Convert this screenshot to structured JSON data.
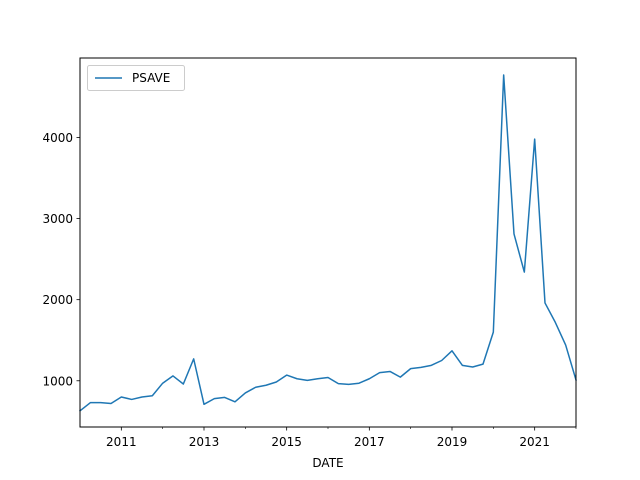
{
  "chart_data": {
    "type": "line",
    "title": "",
    "xlabel": "DATE",
    "ylabel": "",
    "x_ticks": [
      {
        "label": "2011",
        "value": 2011.0
      },
      {
        "label": "2013",
        "value": 2013.0
      },
      {
        "label": "2015",
        "value": 2015.0
      },
      {
        "label": "2017",
        "value": 2017.0
      },
      {
        "label": "2019",
        "value": 2019.0
      },
      {
        "label": "2021",
        "value": 2021.0
      }
    ],
    "x_minor_ticks": [
      2012.0,
      2014.0,
      2016.0,
      2018.0,
      2020.0,
      2022.0
    ],
    "y_ticks": [
      {
        "label": "1000",
        "value": 1000
      },
      {
        "label": "2000",
        "value": 2000
      },
      {
        "label": "3000",
        "value": 3000
      },
      {
        "label": "4000",
        "value": 4000
      }
    ],
    "xlim": [
      2010.0,
      2022.0
    ],
    "ylim": [
      430,
      4980
    ],
    "grid": false,
    "legend_position": "top-left",
    "series": [
      {
        "name": "PSAVE",
        "color": "#1f77b4",
        "points": [
          [
            2010.0,
            630
          ],
          [
            2010.25,
            730
          ],
          [
            2010.5,
            730
          ],
          [
            2010.75,
            720
          ],
          [
            2011.0,
            800
          ],
          [
            2011.25,
            770
          ],
          [
            2011.5,
            800
          ],
          [
            2011.75,
            815
          ],
          [
            2012.0,
            970
          ],
          [
            2012.25,
            1060
          ],
          [
            2012.5,
            960
          ],
          [
            2012.75,
            1270
          ],
          [
            2013.0,
            710
          ],
          [
            2013.25,
            780
          ],
          [
            2013.5,
            795
          ],
          [
            2013.75,
            740
          ],
          [
            2014.0,
            850
          ],
          [
            2014.25,
            920
          ],
          [
            2014.5,
            945
          ],
          [
            2014.75,
            985
          ],
          [
            2015.0,
            1070
          ],
          [
            2015.25,
            1025
          ],
          [
            2015.5,
            1005
          ],
          [
            2015.75,
            1025
          ],
          [
            2016.0,
            1040
          ],
          [
            2016.25,
            965
          ],
          [
            2016.5,
            955
          ],
          [
            2016.75,
            970
          ],
          [
            2017.0,
            1025
          ],
          [
            2017.25,
            1100
          ],
          [
            2017.5,
            1115
          ],
          [
            2017.75,
            1045
          ],
          [
            2018.0,
            1150
          ],
          [
            2018.25,
            1165
          ],
          [
            2018.5,
            1190
          ],
          [
            2018.75,
            1250
          ],
          [
            2019.0,
            1370
          ],
          [
            2019.25,
            1190
          ],
          [
            2019.5,
            1170
          ],
          [
            2019.75,
            1205
          ],
          [
            2020.0,
            1600
          ],
          [
            2020.25,
            4770
          ],
          [
            2020.5,
            2810
          ],
          [
            2020.75,
            2340
          ],
          [
            2021.0,
            3980
          ],
          [
            2021.25,
            1960
          ],
          [
            2021.5,
            1720
          ],
          [
            2021.75,
            1440
          ],
          [
            2022.0,
            1010
          ]
        ]
      }
    ]
  }
}
